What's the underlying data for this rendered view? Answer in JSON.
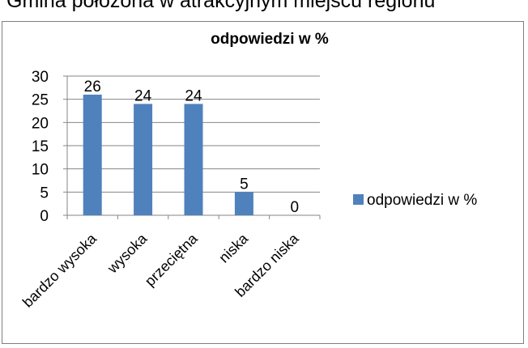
{
  "page_heading": "Gmina położona w atrakcyjnym miejscu regionu",
  "chart_data": {
    "type": "bar",
    "title": "odpowiedzi w %",
    "xlabel": "",
    "ylabel": "",
    "categories": [
      "bardzo wysoka",
      "wysoka",
      "przeciętna",
      "niska",
      "bardzo niska"
    ],
    "series": [
      {
        "name": "odpowiedzi w %",
        "values": [
          26,
          24,
          24,
          5,
          0
        ],
        "color": "#4f81bd"
      }
    ],
    "ylim": [
      0,
      30
    ],
    "yticks": [
      "0",
      "5",
      "10",
      "15",
      "20",
      "25",
      "30"
    ],
    "data_labels": [
      "26",
      "24",
      "24",
      "5",
      "0"
    ],
    "grid": true,
    "legend_position": "right"
  }
}
